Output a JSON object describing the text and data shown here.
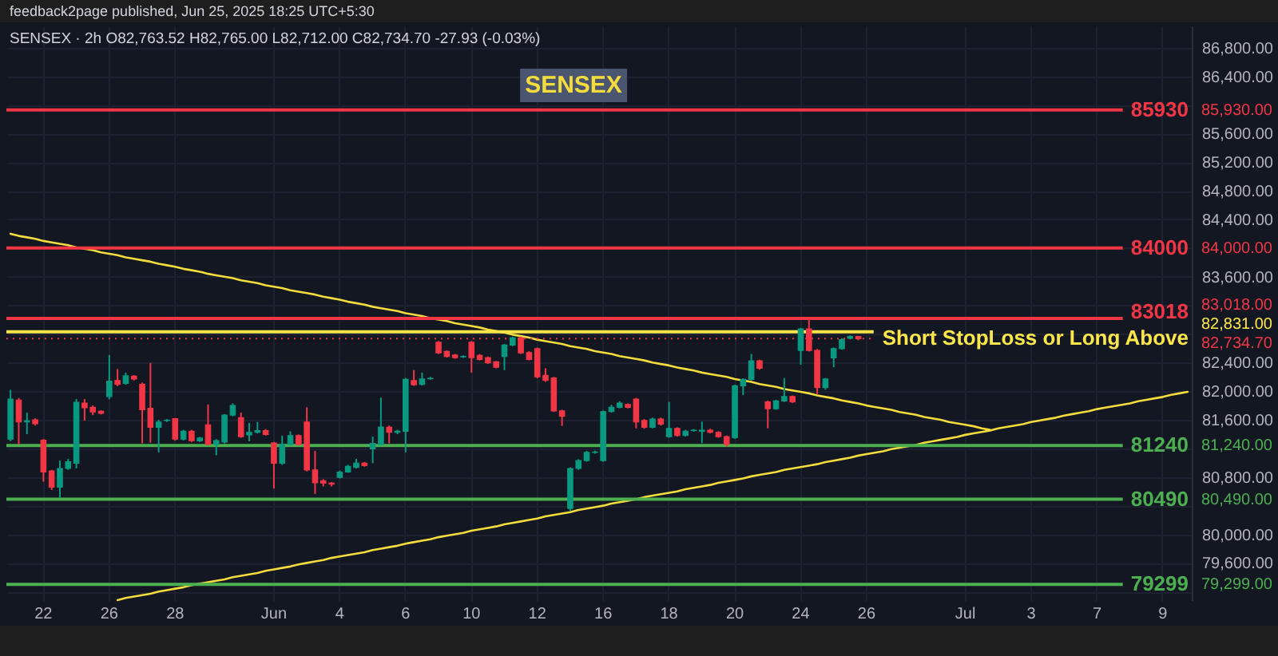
{
  "chart_data": {
    "type": "candlestick",
    "title": "SENSEX",
    "annotations": [
      "feedback2page published, Jun 25, 2025 18:25 UTC+5:30",
      "SENSEX · 2h O82,763.52 H82,765.00 L82,712.00 C82,734.70 -27.93 (-0.03%)",
      "85,930.00",
      "84,000.00",
      "83,018.00",
      "82,831.00",
      "82,734.70",
      "81,240.00",
      "80,490.00",
      "79,299.00"
    ],
    "categories": [
      null,
      null,
      null,
      null,
      "22",
      null,
      null,
      null,
      null,
      null,
      null,
      null,
      "26",
      null,
      null,
      null,
      null,
      null,
      null,
      null,
      "28",
      null,
      null,
      null,
      null,
      null,
      null,
      null,
      null,
      null,
      null,
      null,
      "Jun",
      null,
      null,
      null,
      null,
      null,
      null,
      null,
      "4",
      null,
      null,
      null,
      null,
      null,
      null,
      null,
      "6",
      null,
      null,
      null,
      null,
      null,
      null,
      null,
      "10",
      null,
      null,
      null,
      null,
      null,
      null,
      null,
      "12",
      null,
      null,
      null,
      null,
      null,
      null,
      null,
      "16",
      null,
      null,
      null,
      null,
      null,
      null,
      null,
      "18",
      null,
      null,
      null,
      null,
      null,
      null,
      null,
      "20",
      null,
      null,
      null,
      null,
      null,
      null,
      null,
      "24",
      null,
      null,
      null,
      null,
      null,
      null,
      null,
      "26",
      null,
      null,
      null,
      null,
      null,
      null,
      null,
      null,
      null,
      null,
      null,
      "Jul",
      null,
      null,
      null,
      null,
      null,
      null,
      null,
      "3",
      null,
      null,
      null,
      null,
      null,
      null,
      null,
      "7",
      null,
      null,
      null,
      null,
      null,
      null,
      null,
      "9",
      null,
      null,
      null
    ],
    "ohlc": [
      [
        81330,
        82020,
        81300,
        81890
      ],
      [
        81875,
        81905,
        81255,
        81570
      ],
      [
        81570,
        81700,
        81400,
        81585
      ],
      [
        81600,
        81620,
        81520,
        81545
      ],
      [
        81315,
        81330,
        80735,
        80870
      ],
      [
        80885,
        80900,
        80620,
        80660
      ],
      [
        80660,
        81030,
        80510,
        80920
      ],
      [
        80920,
        81055,
        80900,
        81015
      ],
      [
        80995,
        81890,
        80920,
        81845
      ],
      [
        81835,
        81890,
        81590,
        81770
      ],
      [
        81775,
        81800,
        81665,
        81710
      ],
      [
        81720,
        81735,
        81675,
        81690
      ],
      [
        81925,
        82505,
        81885,
        82140
      ],
      [
        82150,
        82310,
        82070,
        82095
      ],
      [
        82110,
        82260,
        82090,
        82215
      ],
      [
        82210,
        82225,
        82150,
        82170
      ],
      [
        82095,
        82120,
        81270,
        81740
      ],
      [
        81760,
        82395,
        81280,
        81495
      ],
      [
        81495,
        81600,
        81145,
        81570
      ],
      [
        81590,
        81610,
        81570,
        81595
      ],
      [
        81615,
        81625,
        81310,
        81330
      ],
      [
        81330,
        81460,
        81310,
        81440
      ],
      [
        81440,
        81460,
        81290,
        81310
      ],
      [
        81305,
        81360,
        81290,
        81345
      ],
      [
        81530,
        81815,
        81240,
        81255
      ],
      [
        81255,
        81330,
        81105,
        81310
      ],
      [
        81290,
        81680,
        81270,
        81665
      ],
      [
        81665,
        81830,
        81650,
        81800
      ],
      [
        81630,
        81700,
        81350,
        81365
      ],
      [
        81390,
        81555,
        81300,
        81425
      ],
      [
        81425,
        81570,
        81410,
        81450
      ],
      [
        81450,
        81470,
        81380,
        81395
      ],
      [
        81275,
        81290,
        80640,
        80995
      ],
      [
        80995,
        81380,
        80970,
        81255
      ],
      [
        81255,
        81440,
        81240,
        81380
      ],
      [
        81380,
        81395,
        81240,
        81255
      ],
      [
        81570,
        81775,
        80880,
        80900
      ],
      [
        80900,
        81165,
        80565,
        80720
      ],
      [
        80750,
        80770,
        80670,
        80715
      ],
      [
        80715,
        80730,
        80670,
        80700
      ],
      [
        80795,
        80890,
        80780,
        80870
      ],
      [
        80870,
        80970,
        80860,
        80950
      ],
      [
        80935,
        81055,
        80920,
        80995
      ],
      [
        80995,
        81010,
        80945,
        80960
      ],
      [
        81195,
        81365,
        80995,
        81270
      ],
      [
        81255,
        81910,
        81240,
        81500
      ],
      [
        81495,
        81520,
        81270,
        81425
      ],
      [
        81425,
        81460,
        81400,
        81440
      ],
      [
        81440,
        82185,
        81145,
        82165
      ],
      [
        82150,
        82295,
        82075,
        82090
      ],
      [
        82095,
        82260,
        82080,
        82170
      ],
      [
        82175,
        82200,
        82160,
        82180
      ],
      [
        82685,
        82700,
        82520,
        82535
      ],
      [
        82555,
        82570,
        82470,
        82485
      ],
      [
        82505,
        82520,
        82455,
        82470
      ],
      [
        82480,
        82500,
        82465,
        82485
      ],
      [
        82685,
        82700,
        82260,
        82470
      ],
      [
        82500,
        82520,
        82430,
        82445
      ],
      [
        82470,
        82485,
        82380,
        82395
      ],
      [
        82410,
        82420,
        82320,
        82335
      ],
      [
        82485,
        82660,
        82295,
        82645
      ],
      [
        82645,
        82760,
        82630,
        82745
      ],
      [
        82745,
        82760,
        82520,
        82535
      ],
      [
        82540,
        82560,
        82430,
        82445
      ],
      [
        82595,
        82610,
        82180,
        82200
      ],
      [
        82220,
        82320,
        82130,
        82150
      ],
      [
        82185,
        82200,
        81710,
        81725
      ],
      [
        81725,
        81740,
        81515,
        81650
      ],
      [
        80360,
        80935,
        80325,
        80920
      ],
      [
        80920,
        81050,
        80900,
        81030
      ],
      [
        81030,
        81165,
        81015,
        81145
      ],
      [
        81145,
        81170,
        81125,
        81150
      ],
      [
        81030,
        81730,
        81015,
        81715
      ],
      [
        81715,
        81810,
        81700,
        81775
      ],
      [
        81775,
        81860,
        81760,
        81835
      ],
      [
        81815,
        81830,
        81760,
        81775
      ],
      [
        81890,
        81905,
        81480,
        81570
      ],
      [
        81590,
        81610,
        81475,
        81495
      ],
      [
        81495,
        81630,
        81480,
        81610
      ],
      [
        81610,
        81630,
        81520,
        81540
      ],
      [
        81365,
        81850,
        81350,
        81480
      ],
      [
        81480,
        81495,
        81365,
        81380
      ],
      [
        81380,
        81460,
        81365,
        81440
      ],
      [
        81450,
        81470,
        81435,
        81455
      ],
      [
        81440,
        81575,
        81275,
        81455
      ],
      [
        81455,
        81475,
        81410,
        81425
      ],
      [
        81425,
        81440,
        81350,
        81365
      ],
      [
        81365,
        81380,
        81225,
        81255
      ],
      [
        81350,
        82090,
        81335,
        82075
      ],
      [
        82075,
        82180,
        81945,
        82165
      ],
      [
        82165,
        82520,
        82150,
        82425
      ],
      [
        82425,
        82440,
        82300,
        82320
      ],
      [
        81850,
        81870,
        81480,
        81755
      ],
      [
        81755,
        81880,
        81740,
        81865
      ],
      [
        81865,
        82185,
        81850,
        81925
      ],
      [
        81925,
        81940,
        81835,
        81850
      ],
      [
        82570,
        82885,
        82370,
        82870
      ],
      [
        82870,
        83018,
        82555,
        82570
      ],
      [
        82570,
        82590,
        81960,
        82050
      ],
      [
        82050,
        82185,
        82020,
        82170
      ],
      [
        82465,
        82610,
        82335,
        82595
      ],
      [
        82595,
        82740,
        82580,
        82720
      ],
      [
        82740,
        82780,
        82730,
        82765
      ],
      [
        82763.52,
        82765,
        82712,
        82734.7
      ],
      null,
      null,
      null,
      null,
      null,
      null,
      null,
      null,
      null,
      null,
      null,
      null,
      null,
      null,
      null,
      null,
      null,
      null,
      null,
      null,
      null,
      null,
      null,
      null,
      null,
      null,
      null,
      null,
      null,
      null,
      null,
      null,
      null,
      null,
      null,
      null,
      null,
      null,
      null,
      null
    ],
    "colors": [
      "#089981",
      "#f23645",
      "#089981",
      "#f23645",
      "#f23645",
      "#f23645",
      "#089981",
      "#089981",
      "#089981",
      "#f23645",
      "#f23645",
      "#f23645",
      "#089981",
      "#f23645",
      "#089981",
      "#f23645",
      "#f23645",
      "#f23645",
      "#089981",
      "#089981",
      "#f23645",
      "#089981",
      "#f23645",
      "#089981",
      "#f23645",
      "#089981",
      "#089981",
      "#089981",
      "#f23645",
      "#089981",
      "#089981",
      "#f23645",
      "#f23645",
      "#089981",
      "#089981",
      "#f23645",
      "#f23645",
      "#f23645",
      "#f23645",
      "#f23645",
      "#089981",
      "#089981",
      "#089981",
      "#f23645",
      "#089981",
      "#089981",
      "#f23645",
      "#089981",
      "#089981",
      "#f23645",
      "#089981",
      "#089981",
      "#f23645",
      "#f23645",
      "#f23645",
      "#089981",
      "#f23645",
      "#f23645",
      "#f23645",
      "#f23645",
      "#089981",
      "#089981",
      "#f23645",
      "#f23645",
      "#f23645",
      "#f23645",
      "#f23645",
      "#f23645",
      "#089981",
      "#089981",
      "#089981",
      "#089981",
      "#089981",
      "#089981",
      "#089981",
      "#f23645",
      "#f23645",
      "#f23645",
      "#089981",
      "#f23645",
      "#089981",
      "#f23645",
      "#089981",
      "#089981",
      "#089981",
      "#f23645",
      "#f23645",
      "#f23645",
      "#089981",
      "#089981",
      "#089981",
      "#f23645",
      "#f23645",
      "#089981",
      "#089981",
      "#f23645",
      "#089981",
      "#f23645",
      "#f23645",
      "#089981",
      "#089981",
      "#089981",
      "#089981",
      "#f23645",
      null,
      null,
      null,
      null,
      null,
      null,
      null,
      null,
      null,
      null,
      null,
      null,
      null,
      null,
      null,
      null,
      null,
      null,
      null,
      null,
      null,
      null,
      null,
      null,
      null,
      null,
      null,
      null,
      null,
      null,
      null,
      null,
      null,
      null,
      null,
      null,
      null,
      null,
      null,
      null
    ],
    "series": [
      {
        "type": "line",
        "color": "#f4dc3c",
        "values": [
          84200,
          84170,
          84150,
          84130,
          84100,
          84080,
          84060,
          84040,
          84010,
          83990,
          83970,
          83940,
          83920,
          83900,
          83870,
          83850,
          83830,
          83810,
          83780,
          83760,
          83740,
          83710,
          83690,
          83670,
          83640,
          83620,
          83600,
          83580,
          83550,
          83530,
          83510,
          83480,
          83460,
          83440,
          83410,
          83390,
          83370,
          83350,
          83320,
          83300,
          83280,
          83250,
          83230,
          83210,
          83180,
          83160,
          83140,
          83120,
          83090,
          83070,
          83050,
          83020,
          83000,
          82980,
          82950,
          82930,
          82910,
          82890,
          82860,
          82840,
          82820,
          82790,
          82770,
          82750,
          82720,
          82700,
          82680,
          82660,
          82630,
          82610,
          82590,
          82560,
          82540,
          82520,
          82490,
          82470,
          82450,
          82430,
          82400,
          82380,
          82360,
          82330,
          82310,
          82290,
          82260,
          82240,
          82220,
          82200,
          82170,
          82150,
          82130,
          82100,
          82080,
          82060,
          82030,
          82010,
          81990,
          81970,
          81940,
          81920,
          81900,
          81870,
          81850,
          81830,
          81800,
          81780,
          81760,
          81740,
          81710,
          81690,
          81670,
          81640,
          81620,
          81600,
          81570,
          81550,
          81530,
          81510,
          81480,
          81460,
          null,
          null,
          null,
          null,
          null,
          null,
          null,
          null,
          null,
          null,
          null,
          null,
          null,
          null,
          null,
          null,
          null,
          null,
          null,
          null,
          null,
          null,
          null,
          null
        ]
      },
      {
        "type": "line",
        "color": "#f4dc3c",
        "values": [
          null,
          null,
          null,
          null,
          null,
          null,
          null,
          null,
          null,
          null,
          null,
          null,
          null,
          79080,
          79110,
          79130,
          79150,
          79170,
          79200,
          79220,
          79240,
          79260,
          79290,
          79310,
          79330,
          79350,
          79370,
          79400,
          79420,
          79440,
          79460,
          79490,
          79510,
          79530,
          79550,
          79580,
          79600,
          79620,
          79640,
          79670,
          79690,
          79710,
          79730,
          79750,
          79780,
          79800,
          79820,
          79840,
          79870,
          79890,
          79910,
          79930,
          79960,
          79980,
          80000,
          80020,
          80050,
          80070,
          80090,
          80110,
          80140,
          80160,
          80180,
          80200,
          80220,
          80250,
          80270,
          80290,
          80310,
          80340,
          80360,
          80380,
          80400,
          80430,
          80450,
          80470,
          80490,
          80520,
          80540,
          80560,
          80580,
          80600,
          80630,
          80650,
          80670,
          80690,
          80720,
          80740,
          80760,
          80780,
          80810,
          80830,
          80850,
          80870,
          80900,
          80920,
          80940,
          80960,
          80980,
          81010,
          81030,
          81050,
          81070,
          81100,
          81120,
          81140,
          81160,
          81190,
          81210,
          81230,
          81250,
          81280,
          81300,
          81320,
          81340,
          81360,
          81390,
          81410,
          81430,
          81450,
          81480,
          81500,
          81520,
          81540,
          81570,
          81590,
          81610,
          81630,
          81660,
          81680,
          81700,
          81720,
          81750,
          81770,
          81790,
          81810,
          81830,
          81860,
          81880,
          81900,
          81920,
          81950,
          81970,
          81990
        ]
      }
    ],
    "ylim": [
      79080,
      87110
    ],
    "yticks": [
      {
        "value": 79200,
        "label": null
      },
      {
        "value": 79600,
        "label": "79,600.00"
      },
      {
        "value": 80000,
        "label": "80,000.00"
      },
      {
        "value": 80400,
        "label": null
      },
      {
        "value": 80800,
        "label": "80,800.00"
      },
      {
        "value": 81200,
        "label": null
      },
      {
        "value": 81600,
        "label": "81,600.00"
      },
      {
        "value": 82000,
        "label": "82,000.00"
      },
      {
        "value": 82400,
        "label": "82,400.00"
      },
      {
        "value": 82800,
        "label": null
      },
      {
        "value": 83200,
        "label": null
      },
      {
        "value": 83600,
        "label": "83,600.00"
      },
      {
        "value": 84000,
        "label": null
      },
      {
        "value": 84400,
        "label": "84,400.00"
      },
      {
        "value": 84800,
        "label": "84,800.00"
      },
      {
        "value": 85200,
        "label": "85,200.00"
      },
      {
        "value": 85600,
        "label": "85,600.00"
      },
      {
        "value": 86000,
        "label": null
      },
      {
        "value": 86400,
        "label": "86,400.00"
      },
      {
        "value": 86800,
        "label": "86,800.00"
      }
    ],
    "ref_lines": [
      {
        "axis": "y",
        "value": 85930,
        "label": "85930",
        "color": "#f23645"
      },
      {
        "axis": "y",
        "value": 84000,
        "label": "84000",
        "color": "#f23645"
      },
      {
        "axis": "y",
        "value": 83018,
        "label": "83018",
        "color": "#f23645"
      },
      {
        "axis": "y",
        "value": 82831,
        "label": "Short StopLoss or Long Above",
        "color": "#ffe74a"
      },
      {
        "axis": "y",
        "value": 82734.7,
        "color": "#f23645",
        "line_style": "dotted"
      },
      {
        "axis": "y",
        "value": 81240,
        "label": "81240",
        "color": "#4caf50"
      },
      {
        "axis": "y",
        "value": 80490,
        "label": "80490",
        "color": "#4caf50"
      },
      {
        "axis": "y",
        "value": 79299,
        "label": "79299",
        "color": "#4caf50"
      }
    ],
    "grid": true
  }
}
